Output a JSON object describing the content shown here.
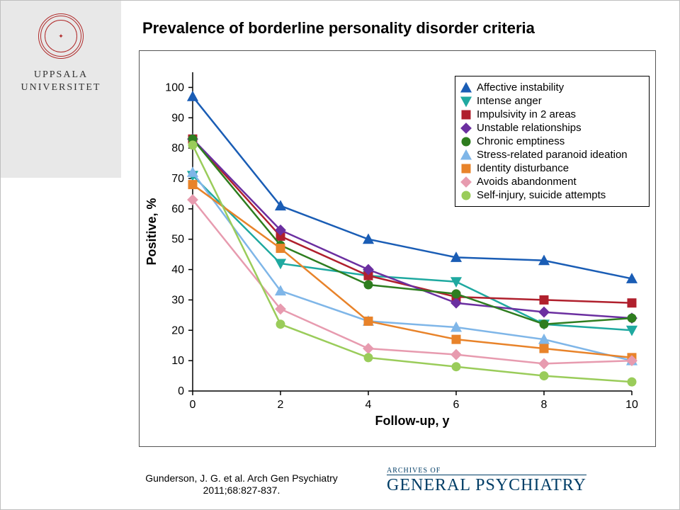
{
  "sidebar": {
    "uni_line1": "UPPSALA",
    "uni_line2": "UNIVERSITET",
    "seal_text": "✦"
  },
  "title": "Prevalence of borderline personality disorder criteria",
  "citation_line1": "Gunderson, J. G. et al. Arch Gen Psychiatry",
  "citation_line2": "2011;68:827-837.",
  "journal": {
    "top": "ARCHIVES OF",
    "main": "GENERAL PSYCHIATRY"
  },
  "chart": {
    "type": "line",
    "xlabel": "Follow-up, y",
    "ylabel": "Positive, %",
    "label_fontsize": 18,
    "tick_fontsize": 16,
    "xlim": [
      0,
      10
    ],
    "ylim": [
      0,
      105
    ],
    "xticks": [
      0,
      2,
      4,
      6,
      8,
      10
    ],
    "yticks": [
      0,
      10,
      20,
      30,
      40,
      50,
      60,
      70,
      80,
      90,
      100
    ],
    "x_values": [
      0,
      2,
      4,
      6,
      8,
      10
    ],
    "background_color": "#ffffff",
    "axis_color": "#000000",
    "series": [
      {
        "name": "Affective instability",
        "color": "#1a5db5",
        "marker": "triangle-up",
        "y": [
          97,
          61,
          50,
          44,
          43,
          37
        ]
      },
      {
        "name": "Intense anger",
        "color": "#1fa9a0",
        "marker": "triangle-down",
        "y": [
          71,
          42,
          38,
          36,
          22,
          20
        ]
      },
      {
        "name": "Impulsivity in 2 areas",
        "color": "#b0202d",
        "marker": "square",
        "y": [
          83,
          51,
          38,
          31,
          30,
          29
        ]
      },
      {
        "name": "Unstable relationships",
        "color": "#6b2fa0",
        "marker": "diamond",
        "y": [
          83,
          53,
          40,
          29,
          26,
          24
        ]
      },
      {
        "name": "Chronic emptiness",
        "color": "#2e7d1f",
        "marker": "circle",
        "y": [
          83,
          48,
          35,
          32,
          22,
          24
        ]
      },
      {
        "name": "Stress-related paranoid ideation",
        "color": "#7fb6e8",
        "marker": "triangle-up",
        "y": [
          72,
          33,
          23,
          21,
          17,
          10
        ]
      },
      {
        "name": "Identity disturbance",
        "color": "#e8832a",
        "marker": "square",
        "y": [
          68,
          47,
          23,
          17,
          14,
          11
        ]
      },
      {
        "name": "Avoids abandonment",
        "color": "#e79baf",
        "marker": "diamond",
        "y": [
          63,
          27,
          14,
          12,
          9,
          10
        ]
      },
      {
        "name": "Self-injury, suicide attempts",
        "color": "#9acc5a",
        "marker": "circle",
        "y": [
          81,
          22,
          11,
          8,
          5,
          3
        ]
      }
    ]
  }
}
